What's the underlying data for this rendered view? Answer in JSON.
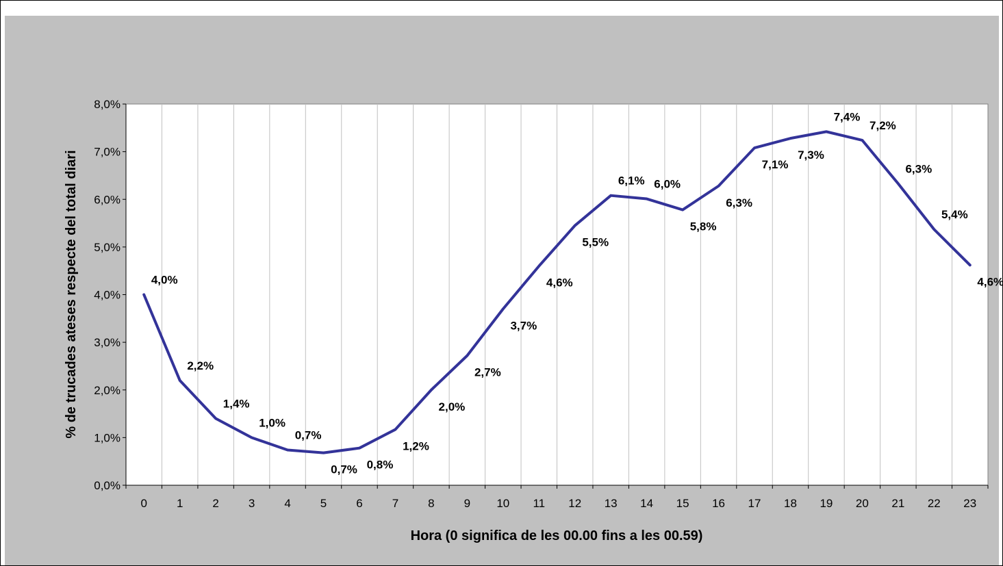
{
  "chart_data": {
    "type": "line",
    "title": "",
    "xlabel": "Hora (0 significa de les 00.00 fins a les 00.59)",
    "ylabel": "% de trucades ateses respecte del total diari",
    "categories": [
      "0",
      "1",
      "2",
      "3",
      "4",
      "5",
      "6",
      "7",
      "8",
      "9",
      "10",
      "11",
      "12",
      "13",
      "14",
      "15",
      "16",
      "17",
      "18",
      "19",
      "20",
      "21",
      "22",
      "23"
    ],
    "series": [
      {
        "values": [
          4.0,
          2.2,
          1.4,
          1.0,
          0.74,
          0.68,
          0.78,
          1.17,
          2.0,
          2.72,
          3.7,
          4.6,
          5.45,
          6.08,
          6.01,
          5.78,
          6.28,
          7.08,
          7.28,
          7.42,
          7.24,
          6.33,
          5.37,
          4.62
        ],
        "labels": [
          "4,0%",
          "2,2%",
          "1,4%",
          "1,0%",
          "0,7%",
          "0,7%",
          "0,8%",
          "1,2%",
          "2,0%",
          "2,7%",
          "3,7%",
          "4,6%",
          "5,5%",
          "6,1%",
          "6,0%",
          "5,8%",
          "6,3%",
          "7,1%",
          "7,3%",
          "7,4%",
          "7,2%",
          "6,3%",
          "5,4%",
          "4,6%"
        ],
        "color": "#333399"
      }
    ],
    "ylim": [
      0,
      8
    ],
    "yticks": [
      0,
      1,
      2,
      3,
      4,
      5,
      6,
      7,
      8
    ],
    "ytick_labels": [
      "0,0%",
      "1,0%",
      "2,0%",
      "3,0%",
      "4,0%",
      "5,0%",
      "6,0%",
      "7,0%",
      "8,0%"
    ],
    "grid": "vertical",
    "legend": "none",
    "colors": {
      "chart_area": "#c0c0c0",
      "plot_area": "#ffffff",
      "gridline": "#c0c0c0",
      "line": "#333399"
    }
  }
}
